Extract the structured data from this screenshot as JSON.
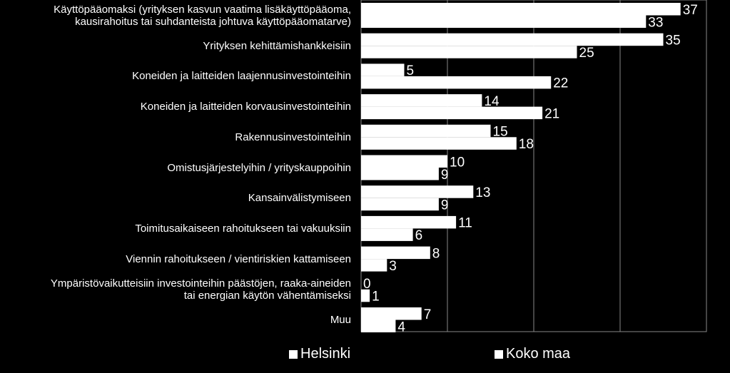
{
  "chart_data": {
    "type": "bar",
    "orientation": "horizontal",
    "title": "",
    "xlabel": "",
    "ylabel": "",
    "xlim": [
      0,
      40
    ],
    "grid": true,
    "legend_position": "bottom",
    "categories": [
      [
        "Käyttöpääomaksi (yrityksen kasvun vaatima lisäkäyttöpääoma,",
        "kausirahoitus tai suhdanteista johtuva käyttöpääomatarve)"
      ],
      [
        "Yrityksen kehittämishankkeisiin"
      ],
      [
        "Koneiden ja laitteiden laajennusinvestointeihin"
      ],
      [
        "Koneiden ja laitteiden korvausinvestointeihin"
      ],
      [
        "Rakennusinvestointeihin"
      ],
      [
        "Omistusjärjestelyihin / yrityskauppoihin"
      ],
      [
        "Kansainvälistymiseen"
      ],
      [
        "Toimitusaikaiseen rahoitukseen tai vakuuksiin"
      ],
      [
        "Viennin rahoitukseen / vientiriskien kattamiseen"
      ],
      [
        "Ympäristövaikutteisiin investointeihin päästöjen, raaka-aineiden",
        "tai energian käytön vähentämiseksi"
      ],
      [
        "Muu"
      ]
    ],
    "series": [
      {
        "name": "Helsinki",
        "values": [
          37,
          35,
          5,
          14,
          15,
          10,
          13,
          11,
          8,
          0,
          7
        ]
      },
      {
        "name": "Koko maa",
        "values": [
          33,
          25,
          22,
          21,
          18,
          9,
          9,
          6,
          3,
          1,
          4
        ]
      }
    ],
    "colors": {
      "bar": "#ffffff",
      "background": "#000000",
      "grid": "#888888",
      "text": "#ffffff"
    }
  }
}
